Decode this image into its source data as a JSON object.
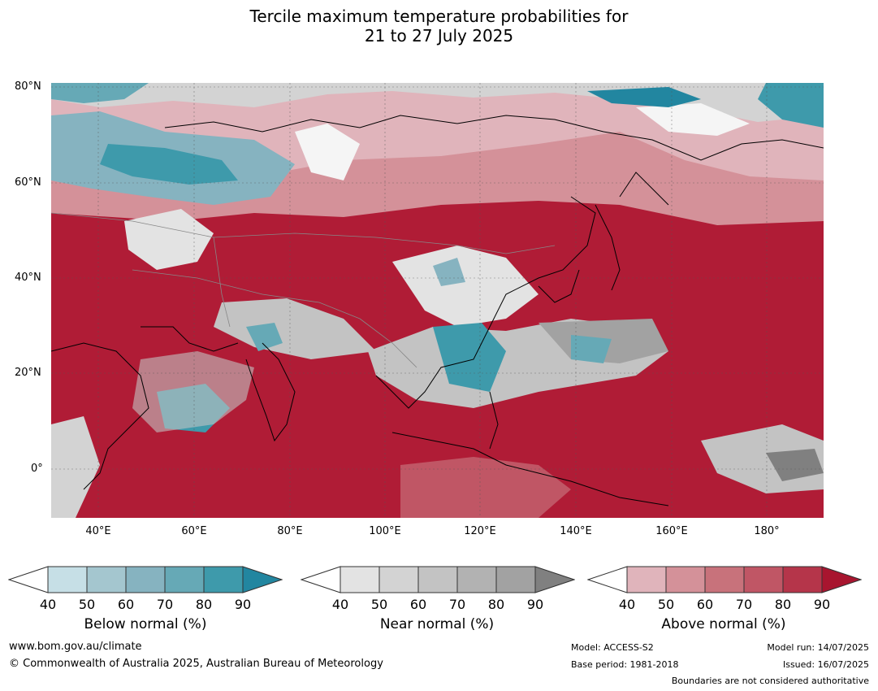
{
  "title_line1": "Tercile maximum temperature probabilities for",
  "title_line2": "21 to 27 July 2025",
  "map": {
    "region": "Asia",
    "lat_labels": [
      "80°N",
      "60°N",
      "40°N",
      "20°N",
      "0°"
    ],
    "lon_labels": [
      "40°E",
      "60°E",
      "80°E",
      "100°E",
      "120°E",
      "140°E",
      "160°E",
      "180°"
    ],
    "background_color": "#b01c36"
  },
  "colorbars": [
    {
      "name": "below",
      "label": "Below normal (%)",
      "ticks": [
        "40",
        "50",
        "60",
        "70",
        "80",
        "90"
      ],
      "colors": [
        "#c6dfe6",
        "#a4c6cf",
        "#86b3c0",
        "#66a9b6",
        "#3e9aab",
        "#2286a0"
      ]
    },
    {
      "name": "near",
      "label": "Near normal (%)",
      "ticks": [
        "40",
        "50",
        "60",
        "70",
        "80",
        "90"
      ],
      "colors": [
        "#e3e3e3",
        "#d3d3d3",
        "#c3c3c3",
        "#b2b2b2",
        "#a2a2a2",
        "#808080"
      ]
    },
    {
      "name": "above",
      "label": "Above normal (%)",
      "ticks": [
        "40",
        "50",
        "60",
        "70",
        "80",
        "90"
      ],
      "colors": [
        "#e0b4bb",
        "#d49199",
        "#c8727b",
        "#c05665",
        "#b5354a",
        "#a8152f"
      ]
    }
  ],
  "footer": {
    "website": "www.bom.gov.au/climate",
    "copyright": "© Commonwealth of Australia 2025, Australian Bureau of Meteorology",
    "model": "Model: ACCESS-S2",
    "base_period": "Base period: 1981-2018",
    "model_run": "Model run: 14/07/2025",
    "issued": "Issued: 16/07/2025",
    "disclaimer": "Boundaries are not considered authoritative"
  }
}
